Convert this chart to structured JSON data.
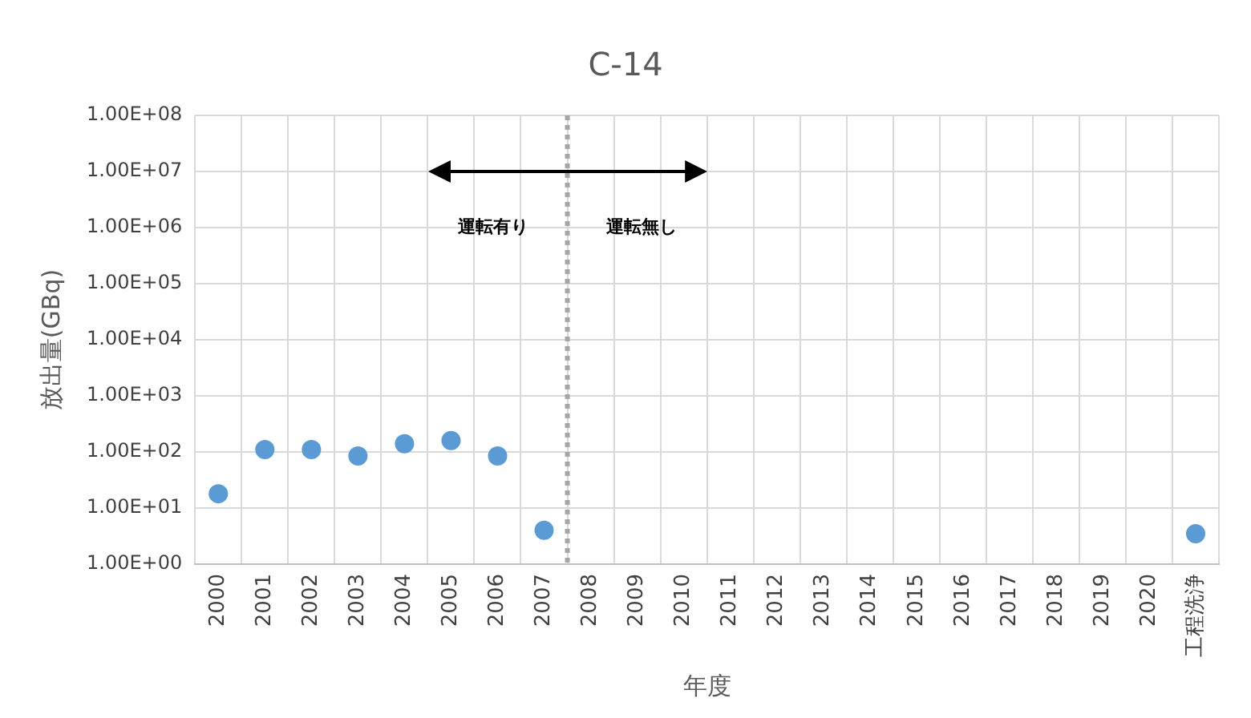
{
  "chart_data": {
    "type": "scatter",
    "title": "C-14",
    "xlabel": "年度",
    "ylabel": "放出量(GBq)",
    "categories": [
      "2000",
      "2001",
      "2002",
      "2003",
      "2004",
      "2005",
      "2006",
      "2007",
      "2008",
      "2009",
      "2010",
      "2011",
      "2012",
      "2013",
      "2014",
      "2015",
      "2016",
      "2017",
      "2018",
      "2019",
      "2020",
      "工程洗浄"
    ],
    "series": [
      {
        "color": "#5b9bd5",
        "values": [
          18,
          110,
          110,
          85,
          140,
          160,
          85,
          4,
          null,
          null,
          null,
          null,
          null,
          null,
          null,
          null,
          null,
          null,
          null,
          null,
          null,
          3.5
        ]
      }
    ],
    "log": "y",
    "ylim": [
      1,
      100000000
    ],
    "yticks": [
      {
        "value": 1,
        "label": "1.00E+00"
      },
      {
        "value": 10,
        "label": "1.00E+01"
      },
      {
        "value": 100,
        "label": "1.00E+02"
      },
      {
        "value": 1000,
        "label": "1.00E+03"
      },
      {
        "value": 10000,
        "label": "1.00E+04"
      },
      {
        "value": 100000,
        "label": "1.00E+05"
      },
      {
        "value": 1000000,
        "label": "1.00E+06"
      },
      {
        "value": 10000000,
        "label": "1.00E+07"
      },
      {
        "value": 100000000,
        "label": "1.00E+08"
      }
    ],
    "grid": true,
    "legend": false,
    "marker": "circle",
    "ref_lines": [
      {
        "axis": "x",
        "value": "2007",
        "color": "#a6a6a6",
        "line_style": "dotted"
      }
    ],
    "annotations": [
      "運転有り",
      "運転無し"
    ]
  }
}
